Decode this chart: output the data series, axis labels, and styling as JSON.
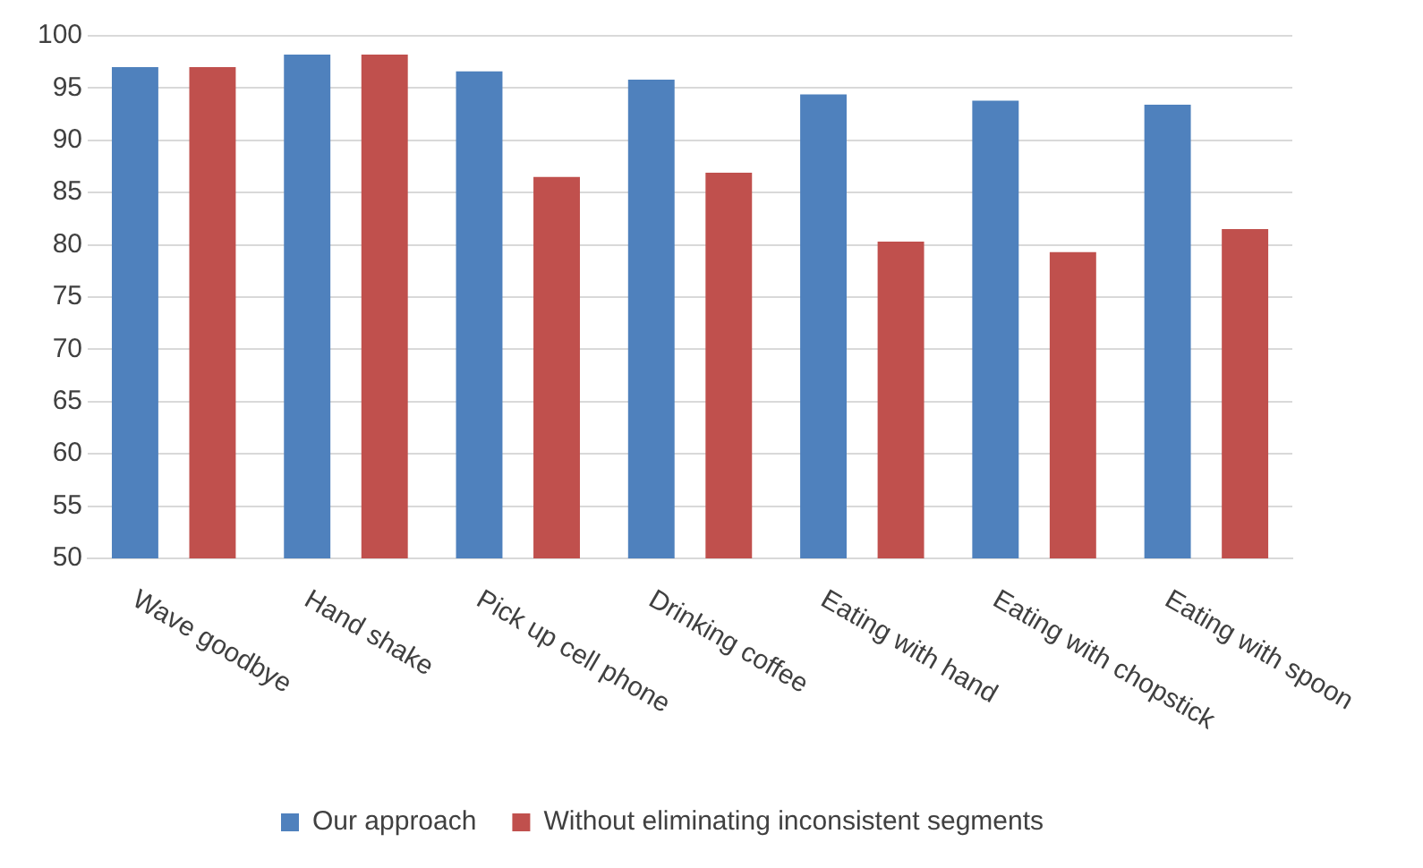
{
  "chart_data": {
    "type": "bar",
    "categories": [
      "Wave goodbye",
      "Hand shake",
      "Pick up cell phone",
      "Drinking coffee",
      "Eating with hand",
      "Eating with chopstick",
      "Eating with spoon"
    ],
    "series": [
      {
        "name": "Our approach",
        "color": "#4f81bd",
        "values": [
          97.0,
          98.2,
          96.6,
          95.8,
          94.4,
          93.8,
          93.4
        ]
      },
      {
        "name": "Without eliminating inconsistent segments",
        "color": "#c0504d",
        "values": [
          97.0,
          98.2,
          86.5,
          86.9,
          80.3,
          79.3,
          81.5
        ]
      }
    ],
    "ylim": [
      50,
      100
    ],
    "yticks": [
      50,
      55,
      60,
      65,
      70,
      75,
      80,
      85,
      90,
      95,
      100
    ],
    "grid": "y",
    "legend": "bottom"
  }
}
